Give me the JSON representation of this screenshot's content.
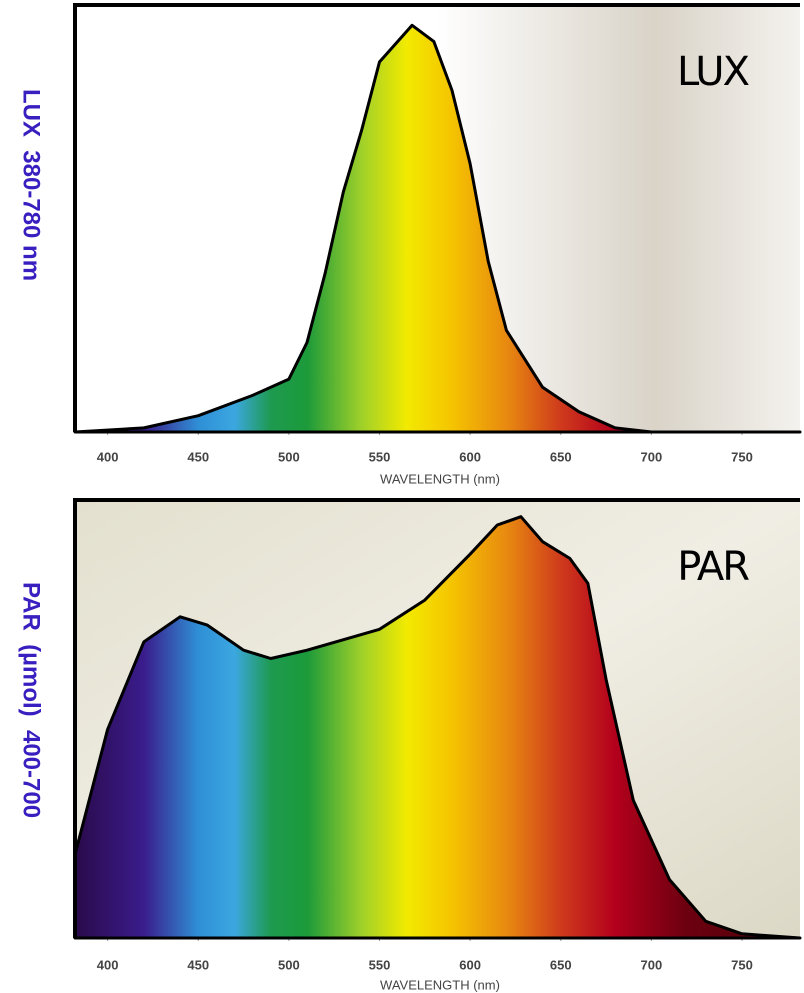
{
  "charts": [
    {
      "chart_data": {
        "type": "area",
        "title": "LUX",
        "side_label": "LUX  380-780 nm",
        "x_label": "WAVELENGTH (nm)",
        "x": [
          382,
          420,
          450,
          480,
          500,
          510,
          520,
          530,
          540,
          550,
          568,
          580,
          590,
          600,
          610,
          620,
          640,
          660,
          680,
          700,
          782
        ],
        "values": [
          0,
          1,
          4,
          9,
          13,
          22,
          39,
          59,
          74,
          91,
          100,
          96,
          84,
          66,
          42,
          25,
          11,
          5,
          1,
          0,
          0
        ],
        "xlim": [
          382,
          782
        ],
        "ylim": [
          0,
          105
        ],
        "xticks": [
          400,
          450,
          500,
          550,
          600,
          650,
          700,
          750
        ],
        "line_color": "#000000"
      }
    },
    {
      "chart_data": {
        "type": "area",
        "title": "PAR",
        "side_label": "PAR  (µmol)  400-700",
        "x_label": "WAVELENGTH (nm)",
        "x": [
          382,
          400,
          420,
          440,
          455,
          475,
          490,
          510,
          550,
          575,
          600,
          615,
          628,
          640,
          655,
          665,
          675,
          690,
          710,
          730,
          750,
          782
        ],
        "values": [
          20,
          50,
          71,
          77,
          75,
          69,
          67,
          69,
          74,
          81,
          92,
          99,
          101,
          95,
          91,
          85,
          62,
          33,
          14,
          4,
          1,
          0
        ],
        "xlim": [
          382,
          782
        ],
        "ylim": [
          0,
          105
        ],
        "xticks": [
          400,
          450,
          500,
          550,
          600,
          650,
          700,
          750
        ],
        "line_color": "#000000"
      }
    }
  ]
}
